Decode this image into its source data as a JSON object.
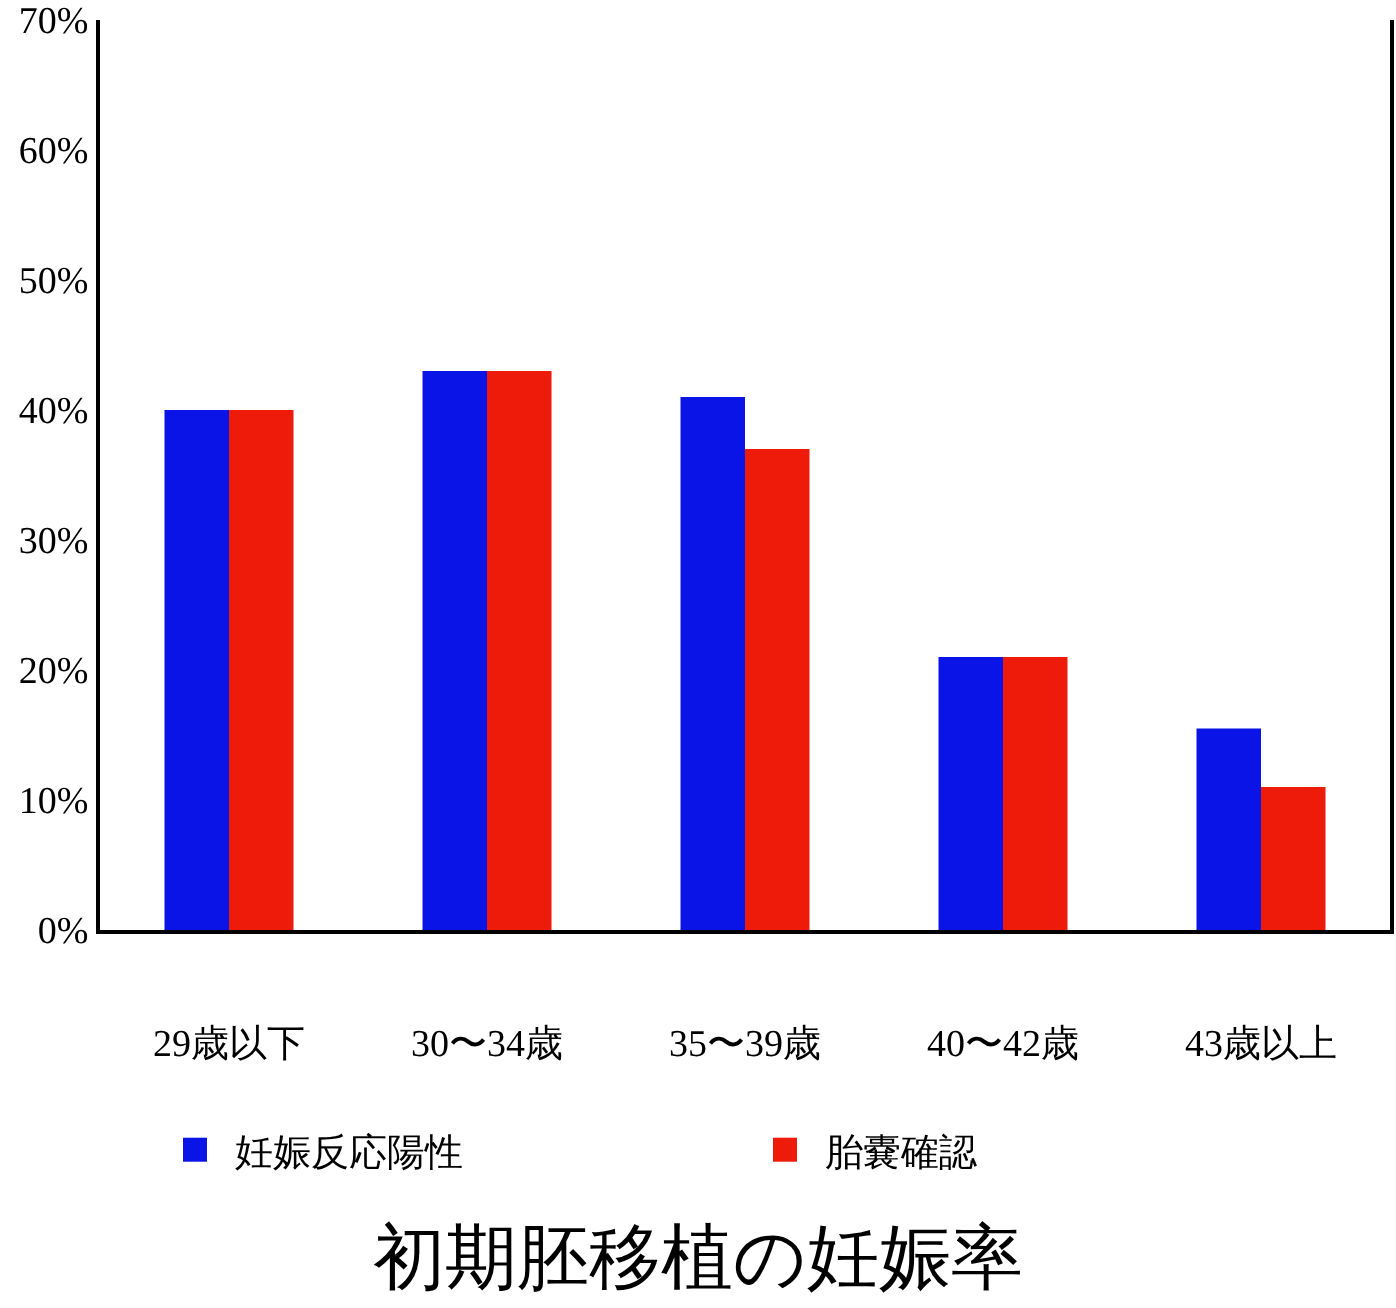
{
  "chart_data": {
    "type": "bar",
    "title": "初期胚移植の妊娠率",
    "categories": [
      "29歳以下",
      "30〜34歳",
      "35〜39歳",
      "40〜42歳",
      "43歳以上"
    ],
    "series": [
      {
        "name": "妊娠反応陽性",
        "color": "#0a14e6",
        "values": [
          40,
          43,
          41,
          21,
          15.5
        ]
      },
      {
        "name": "胎嚢確認",
        "color": "#ee1a0a",
        "values": [
          40,
          43,
          37,
          21,
          11
        ]
      }
    ],
    "ylim": [
      0,
      70
    ],
    "yticks": [
      {
        "value": 0,
        "label": "0%"
      },
      {
        "value": 10,
        "label": "10%"
      },
      {
        "value": 20,
        "label": "20%"
      },
      {
        "value": 30,
        "label": "30%"
      },
      {
        "value": 40,
        "label": "40%"
      },
      {
        "value": 50,
        "label": "50%"
      },
      {
        "value": 60,
        "label": "60%"
      },
      {
        "value": 70,
        "label": "70%"
      }
    ],
    "grid": false,
    "legend": "bottom"
  }
}
